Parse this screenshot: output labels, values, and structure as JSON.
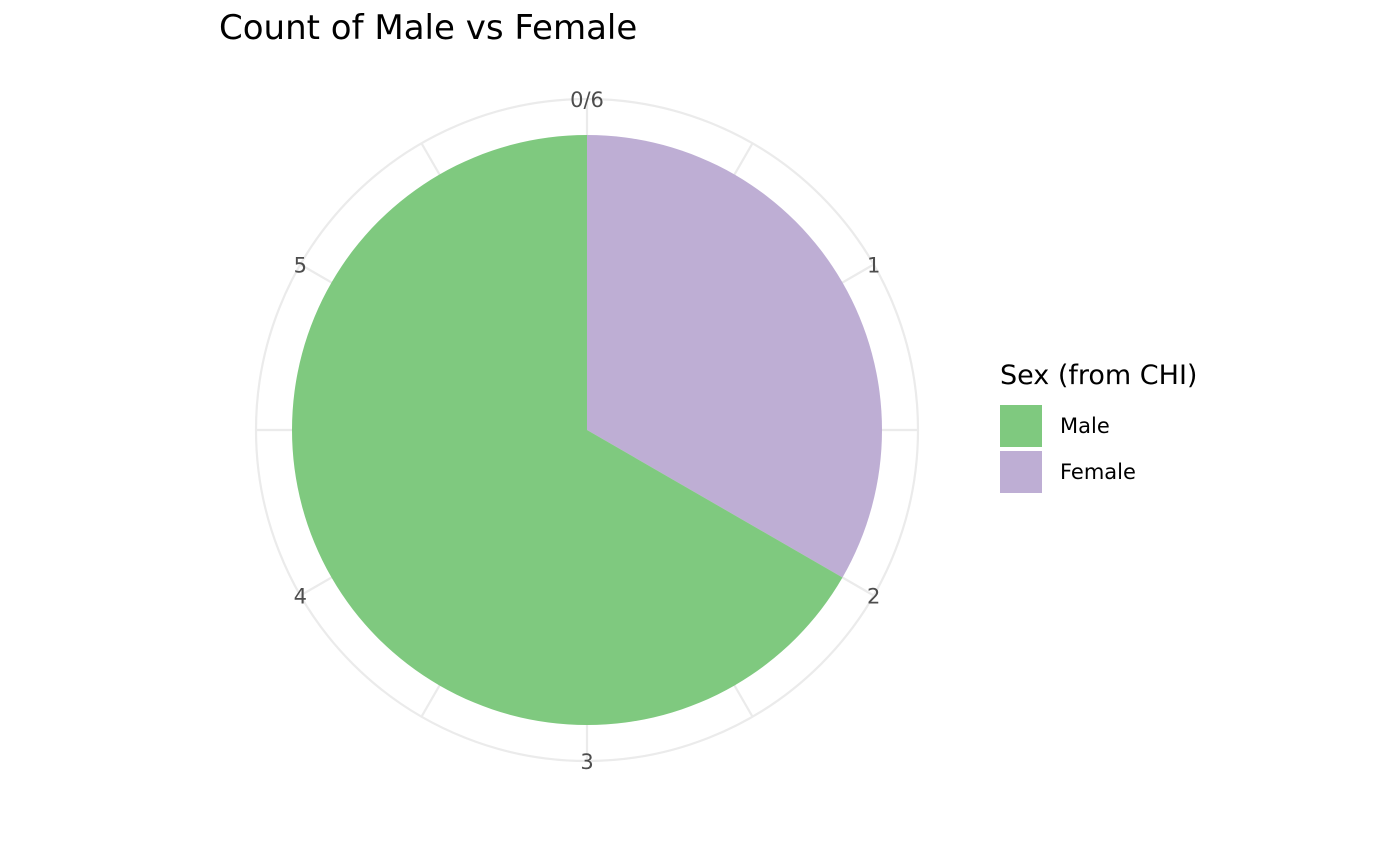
{
  "chart_data": {
    "type": "pie",
    "title": "Count of Male vs Female",
    "legend_title": "Sex (from CHI)",
    "legend_position": "right",
    "grid": true,
    "total": 6,
    "angle_ticks": [
      "0/6",
      "1",
      "2",
      "3",
      "4",
      "5"
    ],
    "slices": [
      {
        "name": "Female",
        "value": 2,
        "color": "#beaed4"
      },
      {
        "name": "Male",
        "value": 4,
        "color": "#7fc97f"
      }
    ],
    "legend": [
      {
        "name": "Male",
        "color": "#7fc97f"
      },
      {
        "name": "Female",
        "color": "#beaed4"
      }
    ]
  }
}
